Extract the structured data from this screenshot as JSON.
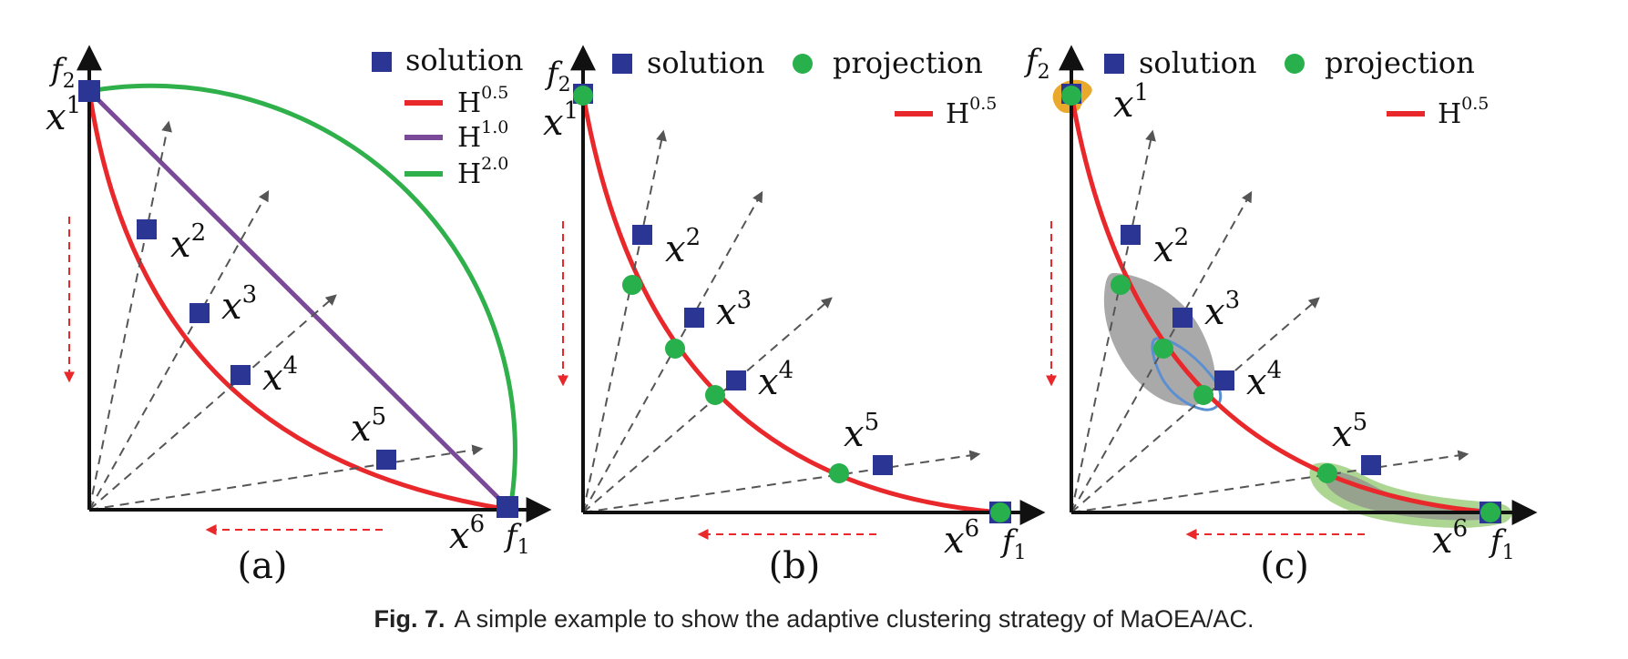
{
  "caption": {
    "label": "Fig. 7.",
    "text": "A simple example to show the adaptive clustering strategy of MaOEA/AC."
  },
  "colors": {
    "solution": "#2b3594",
    "projection": "#27b04b",
    "h05": "#e8282b",
    "h10": "#7a4a98",
    "h20": "#2fb04a",
    "axis": "#111111",
    "ray": "#555555",
    "cluster_gray": "#8c8c8c",
    "cluster_blue": "#5b8fd4",
    "cluster_orange": "#e8a92c",
    "cluster_green": "#8cc46a"
  },
  "axes": {
    "x_label": "f",
    "x_sub": "1",
    "y_label": "f",
    "y_sub": "2"
  },
  "legend": {
    "solution": "solution",
    "projection": "projection",
    "h05_base": "H",
    "h05_sup": "0.5",
    "h10_base": "H",
    "h10_sup": "1.0",
    "h20_base": "H",
    "h20_sup": "2.0"
  },
  "solutions": [
    {
      "base": "x",
      "sup": "1"
    },
    {
      "base": "x",
      "sup": "2"
    },
    {
      "base": "x",
      "sup": "3"
    },
    {
      "base": "x",
      "sup": "4"
    },
    {
      "base": "x",
      "sup": "5"
    },
    {
      "base": "x",
      "sup": "6"
    }
  ],
  "panels": [
    {
      "label": "(a)"
    },
    {
      "label": "(b)"
    },
    {
      "label": "(c)"
    }
  ]
}
